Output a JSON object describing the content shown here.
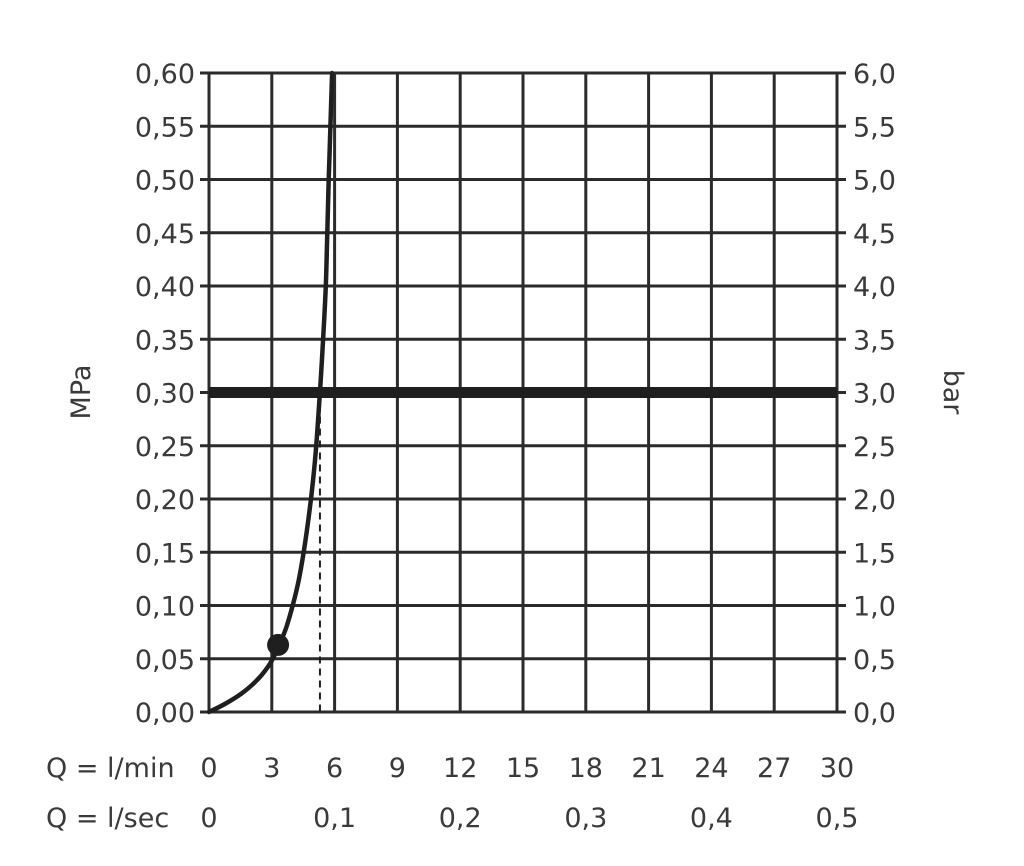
{
  "chart_data": {
    "type": "line",
    "title": "",
    "ylabel_left": "MPa",
    "ylabel_right": "bar",
    "xlabel_row1": "Q = l/min",
    "xlabel_row2": "Q = l/sec",
    "xlim": [
      0,
      30
    ],
    "ylim": [
      0,
      0.6
    ],
    "grid": true,
    "x_ticks_lmin": [
      "0",
      "3",
      "6",
      "9",
      "12",
      "15",
      "18",
      "21",
      "24",
      "27",
      "30"
    ],
    "x_ticks_lsec": [
      {
        "x": 0,
        "label": "0"
      },
      {
        "x": 6,
        "label": "0,1"
      },
      {
        "x": 12,
        "label": "0,2"
      },
      {
        "x": 18,
        "label": "0,3"
      },
      {
        "x": 24,
        "label": "0,4"
      },
      {
        "x": 30,
        "label": "0,5"
      }
    ],
    "y_ticks_left": [
      "0,00",
      "0,05",
      "0,10",
      "0,15",
      "0,20",
      "0,25",
      "0,30",
      "0,35",
      "0,40",
      "0,45",
      "0,50",
      "0,55",
      "0,60"
    ],
    "y_ticks_right": [
      "0,0",
      "0,5",
      "1,0",
      "1,5",
      "2,0",
      "2,5",
      "3,0",
      "3,5",
      "4,0",
      "4,5",
      "5,0",
      "5,5",
      "6,0"
    ],
    "reference_line": {
      "y": 0.3
    },
    "marker": {
      "x": 3.3,
      "y": 0.063
    },
    "flow_at_reference": {
      "x": 5.3,
      "y": 0.3
    },
    "series": [
      {
        "x": [
          0,
          0.8,
          1.6,
          2.3,
          2.8,
          3.1,
          3.4,
          3.7,
          4.0,
          4.3,
          4.6,
          4.9,
          5.1,
          5.3,
          5.45,
          5.58,
          5.65,
          5.72,
          5.8,
          5.88
        ],
        "y": [
          0,
          0.008,
          0.018,
          0.03,
          0.042,
          0.052,
          0.065,
          0.08,
          0.1,
          0.125,
          0.16,
          0.205,
          0.245,
          0.3,
          0.35,
          0.4,
          0.45,
          0.5,
          0.55,
          0.6
        ]
      }
    ]
  }
}
